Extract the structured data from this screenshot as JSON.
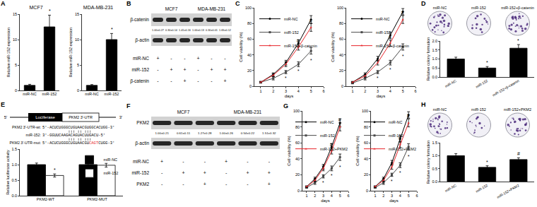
{
  "chart_data": [
    {
      "panel": "A",
      "type": "bar",
      "title": "MCF7",
      "y_label": "Relative miR-152 expression",
      "categories": [
        "miR-NC",
        "miR-152"
      ],
      "values": [
        1,
        12.5
      ],
      "errors": [
        0.2,
        2.3
      ],
      "color": "#000000",
      "ylim": [
        0,
        15
      ],
      "yticks": [
        0,
        5,
        10,
        15
      ],
      "annotations": [
        {
          "category": "miR-152",
          "text": "*"
        }
      ]
    },
    {
      "type": "bar",
      "title": "MDA-MB-231",
      "y_label": "Relative miR-152 expression",
      "categories": [
        "miR-NC",
        "miR-152"
      ],
      "values": [
        1,
        10
      ],
      "errors": [
        0.15,
        1.2
      ],
      "color": "#000000",
      "ylim": [
        0,
        15
      ],
      "yticks": [
        0,
        5,
        10,
        15
      ],
      "annotations": [
        {
          "category": "miR-152",
          "text": "*"
        }
      ]
    },
    {
      "panel": "C",
      "type": "line",
      "x_label": "days",
      "y_label": "Cell viability (%)",
      "x": [
        1,
        2,
        3,
        4,
        5
      ],
      "xlim": [
        0.5,
        6
      ],
      "xticks": [
        1,
        2,
        3,
        4,
        5,
        6
      ],
      "ylim": [
        0,
        100
      ],
      "yticks": [
        0,
        20,
        40,
        60,
        80,
        100
      ],
      "legend": "top-left",
      "series": [
        {
          "name": "miR-NC",
          "color": "#000000",
          "marker": "circle",
          "values": [
            5,
            15,
            30,
            55,
            85
          ],
          "errors": [
            1,
            2,
            3,
            4,
            5
          ]
        },
        {
          "name": "miR-152",
          "color": "#4a4a4a",
          "marker": "square",
          "values": [
            5,
            10,
            18,
            28,
            45
          ],
          "errors": [
            1,
            2,
            2,
            3,
            4
          ]
        },
        {
          "name": "miR-152+β-catenin",
          "color": "#e8262b",
          "marker": "triangle",
          "values": [
            5,
            14,
            28,
            50,
            75
          ],
          "errors": [
            1,
            2,
            3,
            4,
            5
          ]
        }
      ],
      "annotations": [
        {
          "x": 3,
          "y": 10,
          "text": "*"
        },
        {
          "x": 4,
          "y": 19,
          "text": "*"
        },
        {
          "x": 5,
          "y": 33,
          "text": "*"
        },
        {
          "x": 4,
          "y": 58,
          "text": "#"
        },
        {
          "x": 5,
          "y": 83,
          "text": "#"
        }
      ]
    },
    {
      "type": "line",
      "x_label": "days",
      "y_label": "Cell viability (%)",
      "x": [
        1,
        2,
        3,
        4,
        5
      ],
      "xlim": [
        0.5,
        6
      ],
      "xticks": [
        1,
        2,
        3,
        4,
        5,
        6
      ],
      "ylim": [
        0,
        100
      ],
      "yticks": [
        0,
        20,
        40,
        60,
        80,
        100
      ],
      "legend": "top-left",
      "series": [
        {
          "name": "miR-NC",
          "color": "#000000",
          "marker": "circle",
          "values": [
            5,
            15,
            35,
            65,
            95
          ],
          "errors": [
            1,
            2,
            3,
            4,
            4
          ]
        },
        {
          "name": "miR-152",
          "color": "#4a4a4a",
          "marker": "square",
          "values": [
            4,
            10,
            18,
            30,
            50
          ],
          "errors": [
            1,
            2,
            2,
            3,
            4
          ]
        },
        {
          "name": "miR-152+β-catenin",
          "color": "#e8262b",
          "marker": "triangle",
          "values": [
            5,
            13,
            30,
            55,
            85
          ],
          "errors": [
            1,
            2,
            3,
            4,
            5
          ]
        }
      ],
      "annotations": [
        {
          "x": 3,
          "y": 10,
          "text": "*"
        },
        {
          "x": 4,
          "y": 21,
          "text": "*"
        },
        {
          "x": 5,
          "y": 38,
          "text": "*"
        },
        {
          "x": 4,
          "y": 63,
          "text": "#"
        },
        {
          "x": 5,
          "y": 94,
          "text": "#"
        }
      ]
    },
    {
      "type": "bar",
      "y_label": "Relative colony formation",
      "categories": [
        "miR-NC",
        "miR-152",
        "miR-152+β-catenin"
      ],
      "values": [
        1,
        0.5,
        1.6
      ],
      "errors": [
        0.1,
        0.08,
        0.2
      ],
      "color": "#000000",
      "ylim": [
        0,
        2
      ],
      "yticks": [
        {
          "value": 0,
          "label": "0.0"
        },
        {
          "value": 0.5,
          "label": "0.5"
        },
        {
          "value": 1,
          "label": "1.0"
        },
        {
          "value": 1.5,
          "label": "1.5"
        },
        {
          "value": 2,
          "label": "2.0"
        }
      ],
      "annotations": [
        {
          "category": "miR-152",
          "text": "*"
        },
        {
          "category": "miR-152+β-catenin",
          "text": "*"
        }
      ]
    },
    {
      "type": "bar",
      "y_label": "Relative luciferase activity",
      "categories": [
        "PKM2-WT",
        "PKM2-MUT"
      ],
      "legend": "top-right",
      "series": [
        {
          "name": "miR-NC",
          "color": "#000000",
          "values": [
            1,
            1
          ],
          "errors": [
            0.05,
            0.08
          ]
        },
        {
          "name": "miR-152",
          "color": "#ffffff",
          "values": [
            0.65,
            0.98
          ],
          "errors": [
            0.05,
            0.06
          ]
        }
      ],
      "ylim": [
        0,
        1.5
      ],
      "yticks": [
        {
          "value": 0,
          "label": "0.0"
        },
        {
          "value": 0.5,
          "label": "0.5"
        },
        {
          "value": 1,
          "label": "1.0"
        },
        {
          "value": 1.5,
          "label": "1.5"
        }
      ],
      "annotations": [
        {
          "category": "PKM2-WT",
          "series": "miR-152",
          "text": "*"
        }
      ]
    },
    {
      "panel": "G",
      "type": "line",
      "x_label": "days",
      "y_label": "Cell viability (%)",
      "x": [
        1,
        2,
        3,
        4,
        5
      ],
      "xlim": [
        0.5,
        6
      ],
      "xticks": [
        1,
        2,
        3,
        4,
        5,
        6
      ],
      "ylim": [
        0,
        100
      ],
      "yticks": [
        0,
        20,
        40,
        60,
        80,
        100
      ],
      "legend": "top-left",
      "series": [
        {
          "name": "miR-NC",
          "color": "#000000",
          "marker": "circle",
          "values": [
            5,
            15,
            30,
            55,
            85
          ],
          "errors": [
            1,
            2,
            3,
            4,
            5
          ]
        },
        {
          "name": "miR-152",
          "color": "#4a4a4a",
          "marker": "square",
          "values": [
            4,
            10,
            18,
            28,
            42
          ],
          "errors": [
            1,
            2,
            2,
            3,
            4
          ]
        },
        {
          "name": "miR-152+PKM2",
          "color": "#e8262b",
          "marker": "triangle",
          "values": [
            5,
            13,
            28,
            50,
            80
          ],
          "errors": [
            1,
            2,
            3,
            4,
            5
          ]
        }
      ],
      "annotations": [
        {
          "x": 3,
          "y": 10,
          "text": "*"
        },
        {
          "x": 4,
          "y": 19,
          "text": "*"
        },
        {
          "x": 5,
          "y": 30,
          "text": "*"
        },
        {
          "x": 4,
          "y": 58,
          "text": "#"
        },
        {
          "x": 5,
          "y": 89,
          "text": "#"
        }
      ]
    },
    {
      "type": "line",
      "x_label": "days",
      "y_label": "Cell viability (%)",
      "x": [
        1,
        2,
        3,
        4,
        5
      ],
      "xlim": [
        0.5,
        6
      ],
      "xticks": [
        1,
        2,
        3,
        4,
        5,
        6
      ],
      "ylim": [
        0,
        100
      ],
      "yticks": [
        0,
        20,
        40,
        60,
        80,
        100
      ],
      "legend": "top-left",
      "series": [
        {
          "name": "miR-NC",
          "color": "#000000",
          "marker": "circle",
          "values": [
            5,
            15,
            35,
            65,
            95
          ],
          "errors": [
            1,
            2,
            3,
            4,
            4
          ]
        },
        {
          "name": "miR-152",
          "color": "#4a4a4a",
          "marker": "square",
          "values": [
            4,
            10,
            20,
            32,
            55
          ],
          "errors": [
            1,
            2,
            2,
            3,
            4
          ]
        },
        {
          "name": "miR-152+PKM2",
          "color": "#e8262b",
          "marker": "triangle",
          "values": [
            5,
            13,
            30,
            58,
            85
          ],
          "errors": [
            1,
            2,
            3,
            4,
            5
          ]
        }
      ],
      "annotations": [
        {
          "x": 3,
          "y": 12,
          "text": "*"
        },
        {
          "x": 4,
          "y": 23,
          "text": "*"
        },
        {
          "x": 5,
          "y": 43,
          "text": "*"
        },
        {
          "x": 4,
          "y": 66,
          "text": "#"
        },
        {
          "x": 5,
          "y": 94,
          "text": "#"
        }
      ]
    },
    {
      "type": "bar",
      "y_label": "Relative colony formation",
      "categories": [
        "miR-NC",
        "miR-152",
        "miR-152+PKM2"
      ],
      "values": [
        1,
        0.55,
        0.85
      ],
      "errors": [
        0.08,
        0.06,
        0.07
      ],
      "color": "#000000",
      "ylim": [
        0,
        1.5
      ],
      "yticks": [
        {
          "value": 0,
          "label": "0.0"
        },
        {
          "value": 0.5,
          "label": "0.5"
        },
        {
          "value": 1,
          "label": "1.0"
        },
        {
          "value": 1.5,
          "label": "1.5"
        }
      ],
      "annotations": [
        {
          "category": "miR-152",
          "text": "*"
        },
        {
          "category": "miR-152+PKM2",
          "text": "#"
        }
      ]
    }
  ],
  "blots": [
    {
      "panel": "B",
      "cell_lines": [
        "MCF7",
        "MDA-MB-231"
      ],
      "proteins": [
        "β-catenin",
        "β-actin"
      ],
      "quantification": [
        "1.00±0.27",
        "0.30±0.14",
        "1.41±0.16",
        "1.00±0.13",
        "0.30±0.01",
        "1.65±0.12"
      ],
      "conditions": [
        {
          "name": "miR-NC",
          "marks": [
            "+",
            "-",
            "-",
            "+",
            "-",
            "-"
          ]
        },
        {
          "name": "miR-152",
          "marks": [
            "-",
            "+",
            "+",
            "-",
            "+",
            "+"
          ]
        },
        {
          "name": "β-catenin",
          "marks": [
            "-",
            "-",
            "+",
            "-",
            "-",
            "+"
          ]
        }
      ]
    },
    {
      "panel": "F",
      "cell_lines": [
        "MCF7",
        "MDA-MB-231"
      ],
      "proteins": [
        "PKM2",
        "β-actin"
      ],
      "quantification": [
        "1.00±0.21",
        "0.61±0.11",
        "1.27±0.28",
        "1.00±0.26",
        "0.54±0.22",
        "1.51±0.32"
      ],
      "conditions": [
        {
          "name": "miR-NC",
          "marks": [
            "+",
            "-",
            "-",
            "+",
            "-",
            "-"
          ]
        },
        {
          "name": "miR-152",
          "marks": [
            "-",
            "+",
            "+",
            "-",
            "+",
            "+"
          ]
        },
        {
          "name": "PKM2",
          "marks": [
            "-",
            "-",
            "+",
            "-",
            "-",
            "+"
          ]
        }
      ]
    }
  ],
  "construct": {
    "panel": "E",
    "five": "5'",
    "three": "3'",
    "boxes": [
      "Luciferase",
      "PKM2 3'-UTR"
    ],
    "sequences": [
      {
        "label": "PKM2 3'-UTR-wt:",
        "parts": [
          {
            "text": "5'-ACUCUGGGCUGUAACGUGGCACUGG-3'"
          }
        ]
      },
      {
        "label": "miR-152:",
        "parts": [
          {
            "text": "3'-GGUUCAAGACAGUACUUGACU-5'"
          }
        ]
      },
      {
        "label": "PKM2 3'-UTR-mut:",
        "parts": [
          {
            "text": "5'-ACUCUGGGCUGUAACGU"
          },
          {
            "text": "CAGT",
            "color": "#e8262b"
          },
          {
            "text": "CUGG-3'"
          }
        ]
      }
    ]
  },
  "colonies": [
    {
      "panel": "D",
      "labels": [
        "miR-NC",
        "miR-152",
        "miR-152+β-catenin"
      ]
    },
    {
      "panel": "H",
      "labels": [
        "miR-NC",
        "miR-152",
        "miR-152+PKM2"
      ]
    }
  ]
}
